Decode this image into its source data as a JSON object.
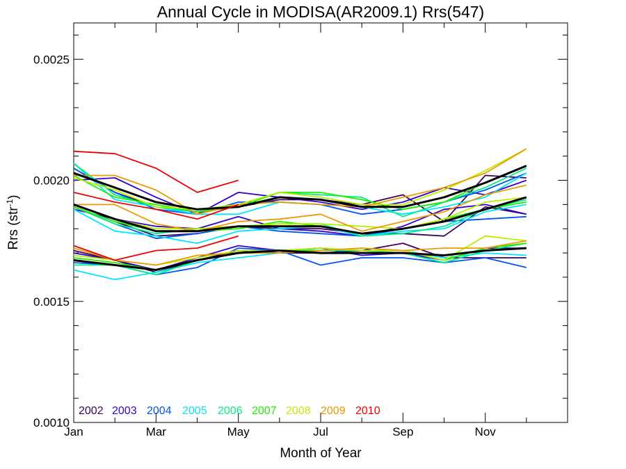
{
  "chart_data": {
    "type": "line",
    "title": "Annual Cycle in MODISA(AR2009.1) Rrs(547)",
    "xlabel": "Month of Year",
    "ylabel_main": "Rrs (str",
    "ylabel_sup": "-1",
    "ylabel_close": ")",
    "xlim": [
      1,
      13
    ],
    "ylim": [
      0.001,
      0.00265
    ],
    "x_ticks": [
      {
        "value": 1,
        "label": "Jan"
      },
      {
        "value": 3,
        "label": "Mar"
      },
      {
        "value": 5,
        "label": "May"
      },
      {
        "value": 7,
        "label": "Jul"
      },
      {
        "value": 9,
        "label": "Sep"
      },
      {
        "value": 11,
        "label": "Nov"
      }
    ],
    "y_ticks": [
      {
        "value": 0.001,
        "label": "0.0010"
      },
      {
        "value": 0.0015,
        "label": "0.0015"
      },
      {
        "value": 0.002,
        "label": "0.0020"
      },
      {
        "value": 0.0025,
        "label": "0.0025"
      }
    ],
    "grid": false,
    "legend_position": "bottom-left",
    "legend": [
      {
        "label": "2002",
        "color": "#3d005a"
      },
      {
        "label": "2003",
        "color": "#3500cc"
      },
      {
        "label": "2004",
        "color": "#0055ee"
      },
      {
        "label": "2005",
        "color": "#00e6ff"
      },
      {
        "label": "2006",
        "color": "#00ee88"
      },
      {
        "label": "2007",
        "color": "#22ee00"
      },
      {
        "label": "2008",
        "color": "#bbee00"
      },
      {
        "label": "2009",
        "color": "#ee9900"
      },
      {
        "label": "2010",
        "color": "#ee0000"
      }
    ],
    "x": [
      1,
      2,
      3,
      4,
      5,
      6,
      7,
      8,
      9,
      10,
      11,
      12
    ],
    "series": [
      {
        "group": "upper",
        "color": "#3d005a",
        "values": [
          0.00205,
          0.00195,
          0.00189,
          0.00187,
          0.00189,
          0.00192,
          0.00192,
          0.0019,
          0.00194,
          0.00183,
          0.00202,
          0.00201
        ]
      },
      {
        "group": "upper",
        "color": "#3500cc",
        "values": [
          0.002,
          0.00201,
          0.00193,
          0.00186,
          0.00195,
          0.00193,
          0.00191,
          0.00188,
          0.00191,
          0.00197,
          0.00194,
          0.002
        ]
      },
      {
        "group": "upper",
        "color": "#0055ee",
        "values": [
          0.00205,
          0.00195,
          0.00188,
          0.00186,
          0.00191,
          0.00191,
          0.0019,
          0.00186,
          0.00188,
          0.00191,
          0.00196,
          0.00203
        ]
      },
      {
        "group": "upper",
        "color": "#00e6ff",
        "values": [
          0.00207,
          0.00192,
          0.00189,
          0.00186,
          0.00186,
          0.00191,
          0.0019,
          0.00189,
          0.00186,
          0.00189,
          0.00193,
          0.00203
        ]
      },
      {
        "group": "upper",
        "color": "#00ee88",
        "values": [
          0.00207,
          0.00194,
          0.00189,
          0.00187,
          0.0019,
          0.00195,
          0.00194,
          0.00193,
          0.00185,
          0.00191,
          0.00197,
          0.00205
        ]
      },
      {
        "group": "upper",
        "color": "#22ee00",
        "values": [
          0.00202,
          0.00193,
          0.0019,
          0.00187,
          0.00189,
          0.00195,
          0.00195,
          0.00192,
          0.00188,
          0.00191,
          0.00199,
          0.00206
        ]
      },
      {
        "group": "upper",
        "color": "#bbee00",
        "values": [
          0.00201,
          0.00196,
          0.00189,
          0.00188,
          0.0019,
          0.00195,
          0.00193,
          0.0019,
          0.0019,
          0.00196,
          0.00204,
          0.00213
        ]
      },
      {
        "group": "upper",
        "color": "#ee9900",
        "values": [
          0.00202,
          0.00202,
          0.00196,
          0.00186,
          0.0019,
          0.00191,
          0.0019,
          0.00189,
          0.00193,
          0.00197,
          0.00203,
          0.00213
        ]
      },
      {
        "group": "upper",
        "color": "#ee0000",
        "values": [
          0.00212,
          0.00211,
          0.00205,
          0.00195,
          0.002,
          null,
          null,
          null,
          null,
          null,
          null,
          null
        ]
      },
      {
        "group": "upper",
        "color": "#000000",
        "width": 3,
        "values": [
          0.00203,
          0.00197,
          0.00191,
          0.00188,
          0.00189,
          0.00193,
          0.00192,
          0.00189,
          0.00189,
          0.00193,
          0.00199,
          0.00206
        ]
      },
      {
        "group": "middle",
        "color": "#3d005a",
        "values": [
          0.00189,
          0.00183,
          0.00177,
          0.00178,
          0.00181,
          0.0018,
          0.0018,
          0.00178,
          0.00178,
          0.00177,
          0.00189,
          0.00186
        ]
      },
      {
        "group": "middle",
        "color": "#3500cc",
        "values": [
          0.00188,
          0.00184,
          0.00181,
          0.0018,
          0.00185,
          0.0018,
          0.00179,
          0.00177,
          0.00181,
          0.00188,
          0.0019,
          0.00186
        ]
      },
      {
        "group": "middle",
        "color": "#0055ee",
        "values": [
          0.00189,
          0.00182,
          0.00176,
          0.00178,
          0.00181,
          0.00179,
          0.00178,
          0.00177,
          0.0018,
          0.00183,
          0.00184,
          0.00185
        ]
      },
      {
        "group": "middle",
        "color": "#00e6ff",
        "values": [
          0.00188,
          0.00179,
          0.00177,
          0.00174,
          0.00179,
          0.0018,
          0.00181,
          0.00177,
          0.00179,
          0.0018,
          0.00187,
          0.0019
        ]
      },
      {
        "group": "middle",
        "color": "#00ee88",
        "values": [
          0.00189,
          0.00182,
          0.00178,
          0.0018,
          0.00181,
          0.00182,
          0.00182,
          0.00177,
          0.00178,
          0.00181,
          0.00188,
          0.00192
        ]
      },
      {
        "group": "middle",
        "color": "#22ee00",
        "values": [
          0.00189,
          0.00183,
          0.00179,
          0.00179,
          0.0018,
          0.00183,
          0.00181,
          0.00178,
          0.0018,
          0.00184,
          0.00188,
          0.00191
        ]
      },
      {
        "group": "middle",
        "color": "#bbee00",
        "values": [
          0.0019,
          0.00184,
          0.0018,
          0.0018,
          0.00181,
          0.00182,
          0.00182,
          0.00181,
          0.0018,
          0.00184,
          0.00191,
          0.00193
        ]
      },
      {
        "group": "middle",
        "color": "#ee9900",
        "values": [
          0.0019,
          0.0019,
          0.00182,
          0.00179,
          0.00183,
          0.00184,
          0.00186,
          0.00179,
          0.00183,
          0.00187,
          0.00194,
          0.00198
        ]
      },
      {
        "group": "middle",
        "color": "#ee0000",
        "values": [
          0.00195,
          0.00191,
          0.00188,
          0.00184,
          0.0019,
          null,
          null,
          null,
          null,
          null,
          null,
          null
        ]
      },
      {
        "group": "middle",
        "color": "#000000",
        "width": 3,
        "values": [
          0.0019,
          0.00184,
          0.00179,
          0.00179,
          0.00181,
          0.00181,
          0.00181,
          0.00178,
          0.0018,
          0.00183,
          0.00188,
          0.00193
        ]
      },
      {
        "group": "lower",
        "color": "#3d005a",
        "values": [
          0.00171,
          0.00167,
          0.00162,
          0.00167,
          0.00171,
          0.0017,
          0.0017,
          0.00171,
          0.00174,
          0.00168,
          0.00168,
          0.00168
        ]
      },
      {
        "group": "lower",
        "color": "#3500cc",
        "values": [
          0.0017,
          0.00167,
          0.00163,
          0.00168,
          0.00173,
          0.00171,
          0.00172,
          0.00169,
          0.0017,
          0.00167,
          0.00172,
          0.00172
        ]
      },
      {
        "group": "lower",
        "color": "#0055ee",
        "values": [
          0.00166,
          0.00165,
          0.00161,
          0.00164,
          0.00172,
          0.00171,
          0.00165,
          0.00168,
          0.00168,
          0.00166,
          0.00168,
          0.00164
        ]
      },
      {
        "group": "lower",
        "color": "#00e6ff",
        "values": [
          0.00163,
          0.00159,
          0.00162,
          0.00166,
          0.00168,
          0.0017,
          0.00172,
          0.00171,
          0.00171,
          0.00168,
          0.0017,
          0.00169
        ]
      },
      {
        "group": "lower",
        "color": "#00ee88",
        "values": [
          0.00165,
          0.00165,
          0.00161,
          0.00167,
          0.0017,
          0.00171,
          0.00171,
          0.00171,
          0.0017,
          0.00166,
          0.00171,
          0.00174
        ]
      },
      {
        "group": "lower",
        "color": "#22ee00",
        "values": [
          0.00168,
          0.00166,
          0.00163,
          0.00167,
          0.0017,
          0.00171,
          0.00171,
          0.00172,
          0.00171,
          0.00167,
          0.00172,
          0.00174
        ]
      },
      {
        "group": "lower",
        "color": "#bbee00",
        "values": [
          0.00169,
          0.00167,
          0.00165,
          0.00168,
          0.00171,
          0.00171,
          0.00172,
          0.00171,
          0.00171,
          0.00167,
          0.00177,
          0.00175
        ]
      },
      {
        "group": "lower",
        "color": "#ee9900",
        "values": [
          0.00172,
          0.00167,
          0.00165,
          0.00169,
          0.0017,
          0.0017,
          0.00171,
          0.00172,
          0.00171,
          0.00172,
          0.00172,
          0.00175
        ]
      },
      {
        "group": "lower",
        "color": "#ee0000",
        "values": [
          0.00173,
          0.00167,
          0.00171,
          0.00172,
          0.00177,
          null,
          null,
          null,
          null,
          null,
          null,
          null
        ]
      },
      {
        "group": "lower",
        "color": "#000000",
        "width": 3,
        "values": [
          0.00167,
          0.00165,
          0.00163,
          0.00167,
          0.0017,
          0.00171,
          0.0017,
          0.0017,
          0.0017,
          0.00169,
          0.00171,
          0.00172
        ]
      }
    ]
  }
}
